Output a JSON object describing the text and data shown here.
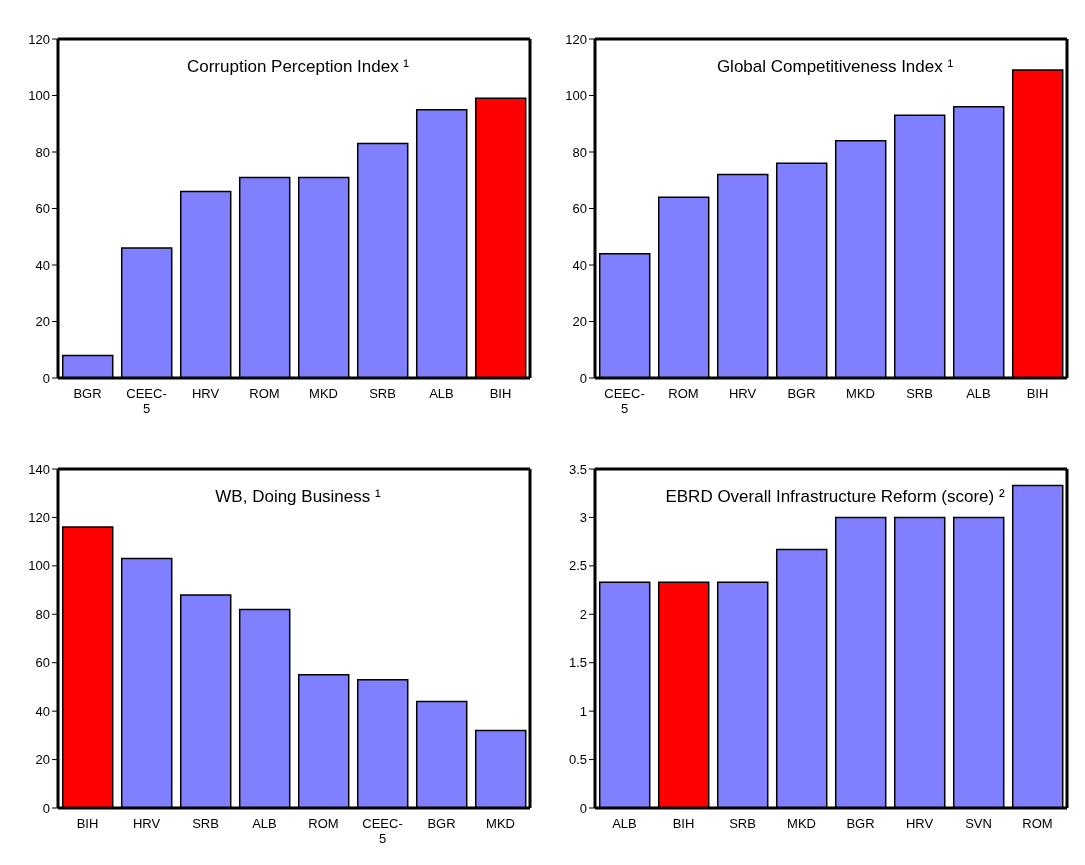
{
  "chart_data": [
    {
      "type": "bar",
      "title": "Corruption Perception Index ¹",
      "categories": [
        "BGR",
        "CEEC-5",
        "HRV",
        "ROM",
        "MKD",
        "SRB",
        "ALB",
        "BIH"
      ],
      "values": [
        8,
        46,
        66,
        71,
        71,
        83,
        95,
        99
      ],
      "colors": [
        "#8080ff",
        "#8080ff",
        "#8080ff",
        "#8080ff",
        "#8080ff",
        "#8080ff",
        "#8080ff",
        "#ff0000"
      ],
      "ylim": [
        0,
        120
      ],
      "yticks": [
        0,
        20,
        40,
        60,
        80,
        100,
        120
      ],
      "grid": false
    },
    {
      "type": "bar",
      "title": "Global Competitiveness Index ¹",
      "categories": [
        "CEEC-5",
        "ROM",
        "HRV",
        "BGR",
        "MKD",
        "SRB",
        "ALB",
        "BIH"
      ],
      "values": [
        44,
        64,
        72,
        76,
        84,
        93,
        96,
        109
      ],
      "colors": [
        "#8080ff",
        "#8080ff",
        "#8080ff",
        "#8080ff",
        "#8080ff",
        "#8080ff",
        "#8080ff",
        "#ff0000"
      ],
      "ylim": [
        0,
        120
      ],
      "yticks": [
        0,
        20,
        40,
        60,
        80,
        100,
        120
      ],
      "grid": false
    },
    {
      "type": "bar",
      "title": "WB, Doing Business ¹",
      "categories": [
        "BIH",
        "HRV",
        "SRB",
        "ALB",
        "ROM",
        "CEEC-5",
        "BGR",
        "MKD"
      ],
      "values": [
        116,
        103,
        88,
        82,
        55,
        53,
        44,
        32
      ],
      "colors": [
        "#ff0000",
        "#8080ff",
        "#8080ff",
        "#8080ff",
        "#8080ff",
        "#8080ff",
        "#8080ff",
        "#8080ff"
      ],
      "ylim": [
        0,
        140
      ],
      "yticks": [
        0,
        20,
        40,
        60,
        80,
        100,
        120,
        140
      ],
      "grid": false
    },
    {
      "type": "bar",
      "title": "EBRD Overall Infrastructure Reform (score) ²",
      "categories": [
        "ALB",
        "BIH",
        "SRB",
        "MKD",
        "BGR",
        "HRV",
        "SVN",
        "ROM"
      ],
      "values": [
        2.33,
        2.33,
        2.33,
        2.67,
        3,
        3,
        3,
        3.33
      ],
      "colors": [
        "#8080ff",
        "#ff0000",
        "#8080ff",
        "#8080ff",
        "#8080ff",
        "#8080ff",
        "#8080ff",
        "#8080ff"
      ],
      "ylim": [
        0,
        3.5
      ],
      "yticks": [
        0,
        0.5,
        1,
        1.5,
        2,
        2.5,
        3,
        3.5
      ],
      "grid": false
    }
  ]
}
